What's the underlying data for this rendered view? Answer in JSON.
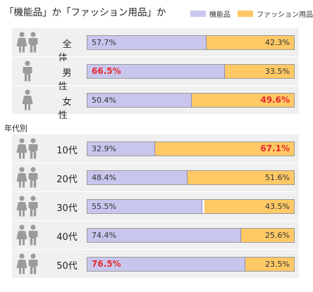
{
  "title": "「機能品」か「ファッション用品」か",
  "section_label": "年代別",
  "colors": {
    "functional": "#c9c6ee",
    "fashion": "#ffc966",
    "highlight": "#e52b2b"
  },
  "chart_data": {
    "type": "bar",
    "orientation": "horizontal",
    "stacked": true,
    "unit": "%",
    "xlim": [
      0,
      100
    ],
    "legend_position": "top-right",
    "categories": [
      "全 体",
      "男 性",
      "女 性",
      "10代",
      "20代",
      "30代",
      "40代",
      "50代"
    ],
    "series": [
      {
        "name": "機能品",
        "values": [
          57.7,
          66.5,
          50.4,
          32.9,
          48.4,
          55.5,
          74.4,
          76.5
        ]
      },
      {
        "name": "ファッション用品",
        "values": [
          42.3,
          33.5,
          49.6,
          67.1,
          51.6,
          43.5,
          25.6,
          23.5
        ]
      }
    ],
    "value_labels": [
      [
        "57.7%",
        "42.3%"
      ],
      [
        "66.5%",
        "33.5%"
      ],
      [
        "50.4%",
        "49.6%"
      ],
      [
        "32.9%",
        "67.1%"
      ],
      [
        "48.4%",
        "51.6%"
      ],
      [
        "55.5%",
        "43.5%"
      ],
      [
        "74.4%",
        "25.6%"
      ],
      [
        "76.5%",
        "23.5%"
      ]
    ],
    "highlighted": [
      [
        false,
        false
      ],
      [
        true,
        false
      ],
      [
        false,
        true
      ],
      [
        false,
        true
      ],
      [
        false,
        false
      ],
      [
        false,
        false
      ],
      [
        false,
        false
      ],
      [
        true,
        false
      ]
    ],
    "icons": [
      "male-female",
      "male",
      "female",
      "male-female",
      "male-female",
      "male-female",
      "male-female",
      "male-female"
    ]
  }
}
